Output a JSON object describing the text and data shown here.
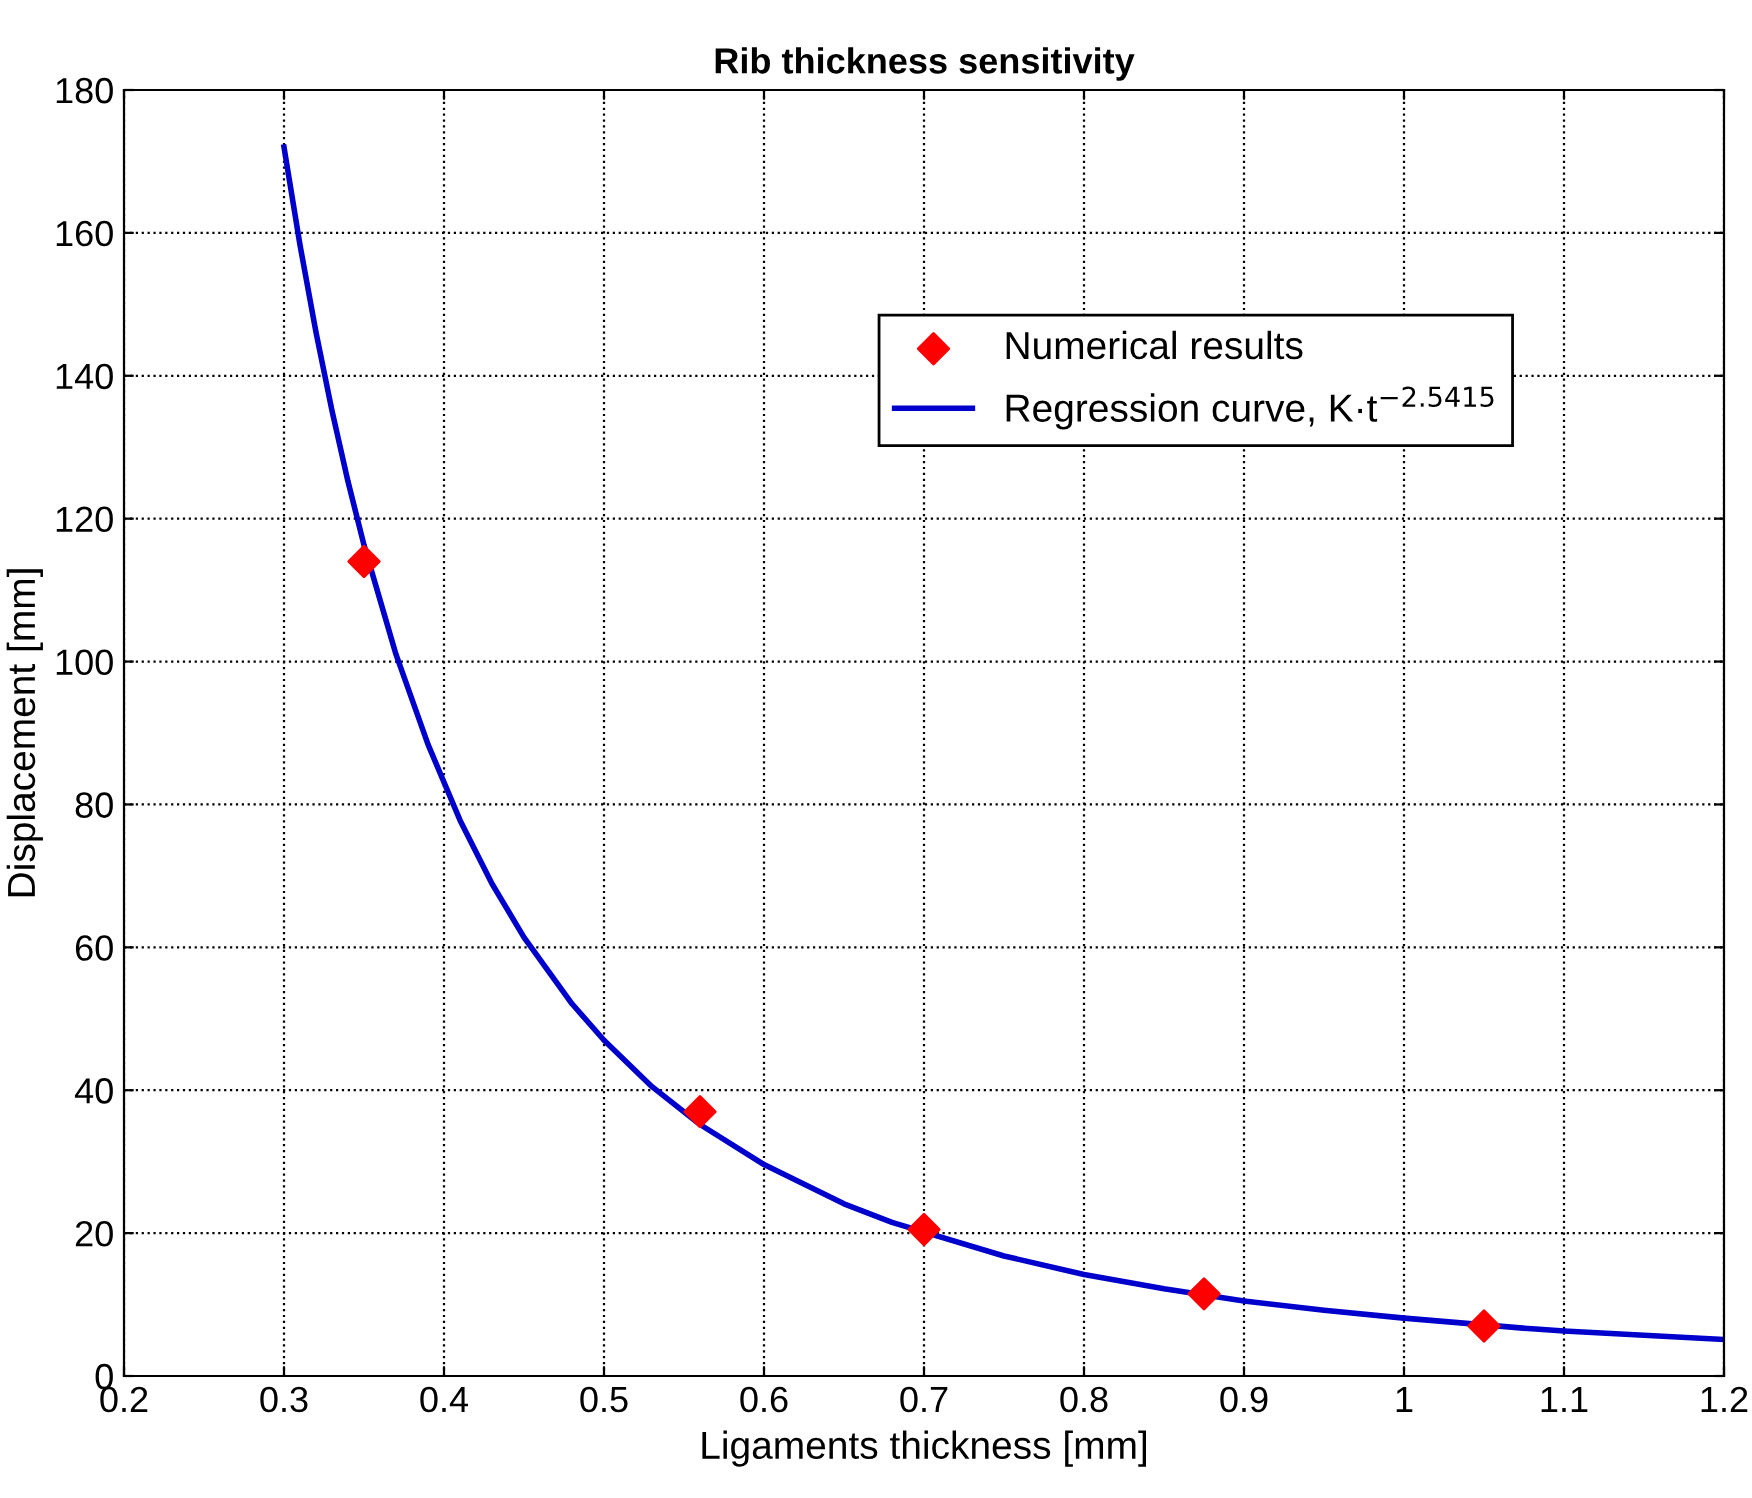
{
  "chart_data": {
    "type": "line",
    "title": "Rib thickness sensitivity",
    "xlabel": "Ligaments thickness [mm]",
    "ylabel": "Displacement [mm]",
    "series": [
      {
        "name": "Numerical results",
        "type": "scatter",
        "color": "#ff0000",
        "marker": "diamond",
        "x": [
          0.35,
          0.56,
          0.7,
          0.875,
          1.05
        ],
        "values": [
          114,
          37,
          20.5,
          11.5,
          7
        ]
      },
      {
        "name": "Regression curve, K·t$^{−2.5415}$",
        "color": "#0000cc",
        "marker": "none",
        "line_style": "solid",
        "x": [
          0.3,
          0.31,
          0.32,
          0.33,
          0.34,
          0.35,
          0.37,
          0.39,
          0.41,
          0.43,
          0.45,
          0.48,
          0.5,
          0.53,
          0.56,
          0.6,
          0.65,
          0.68,
          0.75,
          0.8,
          0.85,
          0.9,
          0.95,
          1.0,
          1.08,
          1.1,
          1.15,
          1.2
        ],
        "values": [
          172,
          158.3,
          146.1,
          135.1,
          125.2,
          116.3,
          101,
          88.4,
          77.8,
          68.9,
          61.4,
          52.1,
          47,
          40.5,
          35.2,
          29.6,
          24.1,
          21.5,
          16.8,
          14.2,
          12.2,
          10.5,
          9.2,
          8.1,
          6.6,
          6.3,
          5.7,
          5.1
        ]
      }
    ],
    "xlim": [
      0.2,
      1.2
    ],
    "xticks": [
      0.2,
      0.3,
      0.4,
      0.5,
      0.6,
      0.7,
      0.8,
      0.9,
      1,
      1.1,
      1.2
    ],
    "ylim": [
      0,
      180
    ],
    "yticks": [
      0,
      20,
      40,
      60,
      80,
      100,
      120,
      140,
      160,
      180
    ],
    "grid": true,
    "legend": "top right"
  }
}
